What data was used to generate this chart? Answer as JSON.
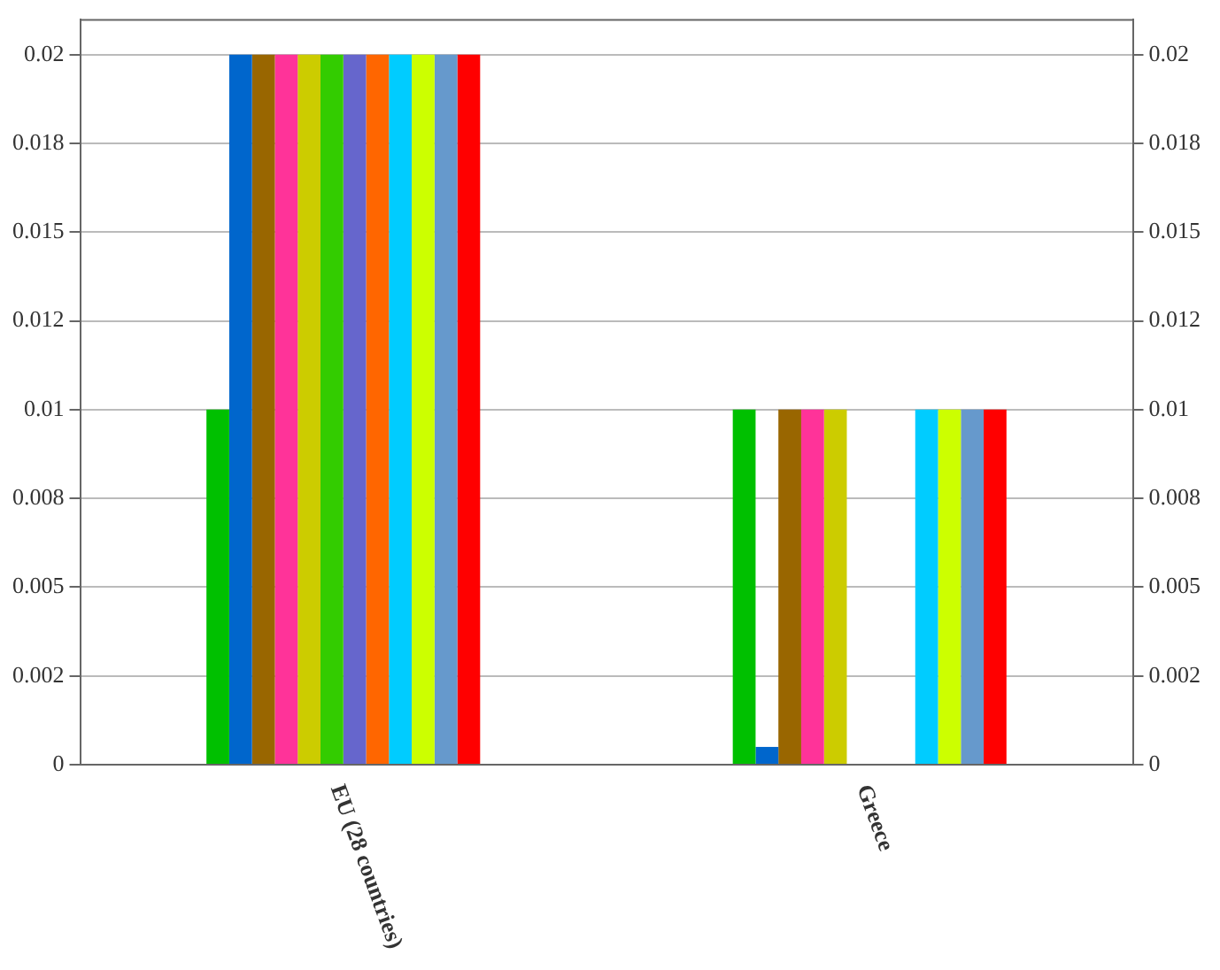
{
  "chart_data": {
    "type": "bar",
    "categories": [
      "EU (28 countries)",
      "Greece"
    ],
    "series": [
      {
        "color": "#00c000",
        "values": [
          0.01,
          0.01
        ]
      },
      {
        "color": "#0066cc",
        "values": [
          0.02,
          0.0005
        ]
      },
      {
        "color": "#996600",
        "values": [
          0.02,
          0.01
        ]
      },
      {
        "color": "#ff3399",
        "values": [
          0.02,
          0.01
        ]
      },
      {
        "color": "#cccc00",
        "values": [
          0.02,
          0.01
        ]
      },
      {
        "color": "#33cc00",
        "values": [
          0.02,
          0
        ]
      },
      {
        "color": "#6666cc",
        "values": [
          0.02,
          0
        ]
      },
      {
        "color": "#ff6600",
        "values": [
          0.02,
          0
        ]
      },
      {
        "color": "#00ccff",
        "values": [
          0.02,
          0.01
        ]
      },
      {
        "color": "#ccff00",
        "values": [
          0.02,
          0.01
        ]
      },
      {
        "color": "#6699cc",
        "values": [
          0.02,
          0.01
        ]
      },
      {
        "color": "#ff0000",
        "values": [
          0.02,
          0.01
        ]
      }
    ],
    "ylim": [
      0,
      0.021
    ],
    "yticks": [
      0,
      {
        "value": 0.0025,
        "label": "0.002"
      },
      0.005,
      {
        "value": 0.0075,
        "label": "0.008"
      },
      0.01,
      {
        "value": 0.0125,
        "label": "0.012"
      },
      0.015,
      {
        "value": 0.0175,
        "label": "0.018"
      },
      0.02
    ],
    "y2lim": [
      0,
      0.021
    ],
    "y2ticks": [
      0,
      {
        "value": 0.0025,
        "label": "0.002"
      },
      0.005,
      {
        "value": 0.0075,
        "label": "0.008"
      },
      0.01,
      {
        "value": 0.0125,
        "label": "0.012"
      },
      0.015,
      {
        "value": 0.0175,
        "label": "0.018"
      },
      0.02
    ],
    "grid": "y",
    "legend": false
  }
}
